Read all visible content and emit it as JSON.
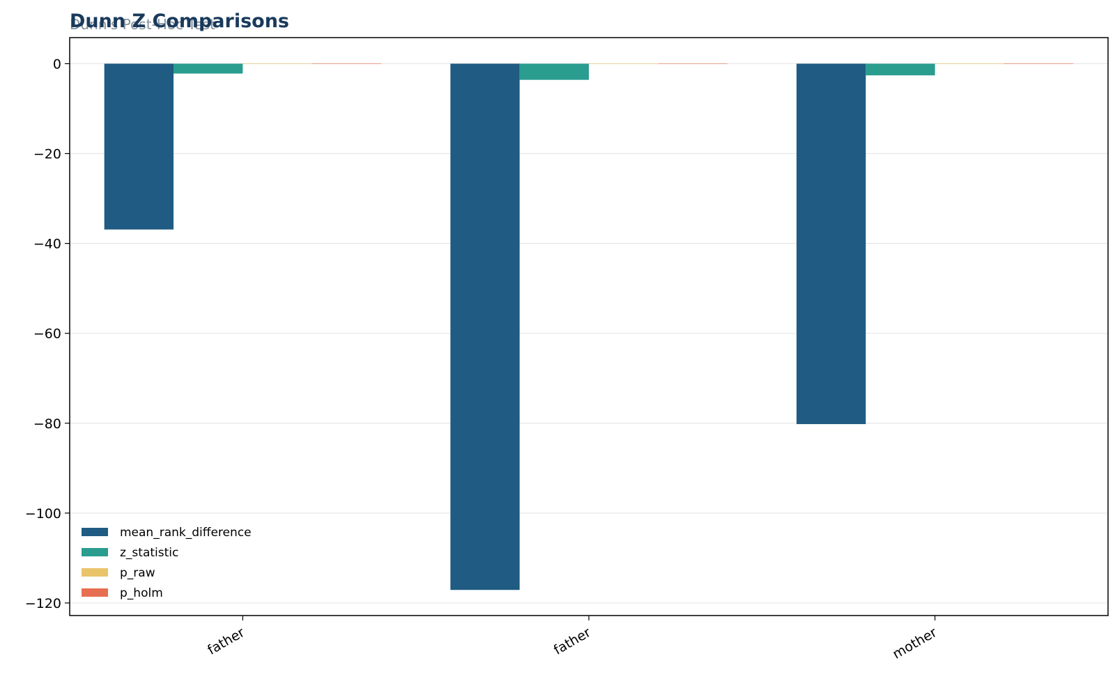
{
  "chart_data": {
    "type": "bar",
    "title": "Dunn Z Comparisons",
    "subtitle": "Dunn's Post-Hoc Test",
    "xlabel": "",
    "ylabel": "",
    "categories": [
      "father",
      "father",
      "mother"
    ],
    "series": [
      {
        "name": "mean_rank_difference",
        "color": "#1f5b82",
        "values": [
          -36.9,
          -117.1,
          -80.2
        ]
      },
      {
        "name": "z_statistic",
        "color": "#2a9d8f",
        "values": [
          -2.2,
          -3.6,
          -2.6
        ]
      },
      {
        "name": "p_raw",
        "color": "#e9c46a",
        "values": [
          0.028,
          0.0003,
          0.009
        ]
      },
      {
        "name": "p_holm",
        "color": "#e76f51",
        "values": [
          0.028,
          0.001,
          0.019
        ]
      }
    ],
    "ylim": [
      -122.8,
      5.8
    ],
    "yticks": [
      0,
      -20,
      -40,
      -60,
      -80,
      -100,
      -120
    ],
    "ytick_labels": [
      "0",
      "−20",
      "−40",
      "−60",
      "−80",
      "−100",
      "−120"
    ],
    "grid": "y",
    "legend_position": "lower-left"
  }
}
